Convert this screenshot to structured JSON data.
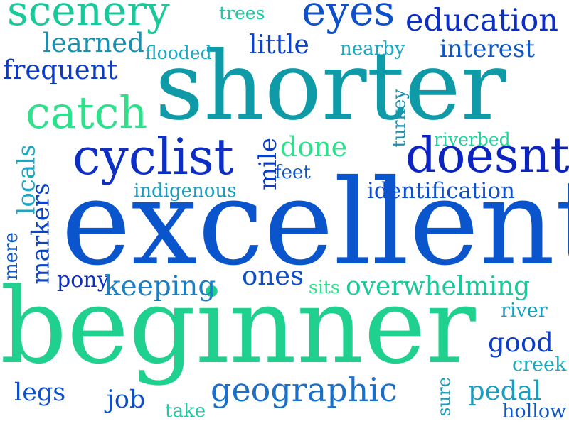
{
  "words": {
    "shorter": {
      "text": "shorter",
      "color": "#0f9aa8"
    },
    "excellent": {
      "text": "excellent",
      "color": "#0b55cc"
    },
    "beginner": {
      "text": "beginner",
      "color": "#1fd08f"
    },
    "scenery": {
      "text": "scenery",
      "color": "#1ac89a"
    },
    "eyes": {
      "text": "eyes",
      "color": "#0d50c9"
    },
    "education": {
      "text": "education",
      "color": "#0b2fc4"
    },
    "trees": {
      "text": "trees",
      "color": "#1fc9a3"
    },
    "learned": {
      "text": "learned",
      "color": "#1a8fb0"
    },
    "flooded": {
      "text": "flooded",
      "color": "#1aa7c2"
    },
    "little": {
      "text": "little",
      "color": "#0b42c8"
    },
    "nearby": {
      "text": "nearby",
      "color": "#1aa7c2"
    },
    "interest": {
      "text": "interest",
      "color": "#0d58c6"
    },
    "frequent": {
      "text": "frequent",
      "color": "#0b3cc8"
    },
    "catch": {
      "text": "catch",
      "color": "#2de18b"
    },
    "cyclist": {
      "text": "cyclist",
      "color": "#0b2fc4"
    },
    "doesnt": {
      "text": "doesnt",
      "color": "#0b24c0"
    },
    "done": {
      "text": "done",
      "color": "#2de18b"
    },
    "feet": {
      "text": "feet",
      "color": "#0d58c6"
    },
    "riverbed": {
      "text": "riverbed",
      "color": "#22d29a"
    },
    "turkey": {
      "text": "turkey",
      "color": "#1a8fb0"
    },
    "mile": {
      "text": "mile",
      "color": "#0b3cc8"
    },
    "locals": {
      "text": "locals",
      "color": "#1aa7c2"
    },
    "indigenous": {
      "text": "indigenous",
      "color": "#1a9cbf"
    },
    "identification": {
      "text": "identification",
      "color": "#0d50c9"
    },
    "markers": {
      "text": "markers",
      "color": "#0b44c4"
    },
    "mere": {
      "text": "mere",
      "color": "#0d58c6"
    },
    "pony": {
      "text": "pony",
      "color": "#0b2fc4"
    },
    "keeping": {
      "text": "keeping",
      "color": "#1a7fc4"
    },
    "ones": {
      "text": "ones",
      "color": "#0d50c9"
    },
    "sits": {
      "text": "sits",
      "color": "#2de18b"
    },
    "overwhelming": {
      "text": "overwhelming",
      "color": "#1ac89a"
    },
    "river": {
      "text": "river",
      "color": "#1a9cbf"
    },
    "good": {
      "text": "good",
      "color": "#0b3cc8"
    },
    "creek": {
      "text": "creek",
      "color": "#1aa7c2"
    },
    "legs": {
      "text": "legs",
      "color": "#0d50c9"
    },
    "job": {
      "text": "job",
      "color": "#0d50c9"
    },
    "take": {
      "text": "take",
      "color": "#1fc9a3"
    },
    "geographic": {
      "text": "geographic",
      "color": "#1a6fc8"
    },
    "sure": {
      "text": "sure",
      "color": "#1a9cbf"
    },
    "pedal": {
      "text": "pedal",
      "color": "#1a9cbf"
    },
    "hollow": {
      "text": "hollow",
      "color": "#0d58c6"
    }
  }
}
